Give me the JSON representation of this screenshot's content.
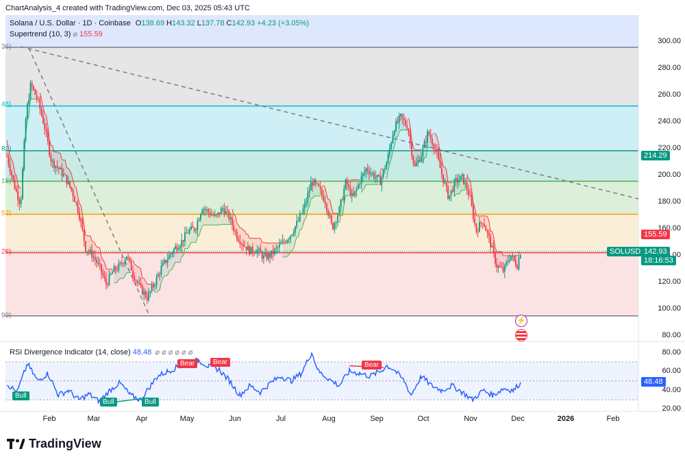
{
  "watermark": "ChartAnalysis_4 created with TradingView.com, Dec 03, 2025 05:43 UTC",
  "symbol": "Solana / U.S. Dollar · 1D · Coinbase",
  "ohlc": {
    "o_label": "O",
    "o": "138.69",
    "h_label": "H",
    "h": "143.32",
    "l_label": "L",
    "l": "137.78",
    "c_label": "C",
    "c": "142.93",
    "chg": "+4.23 (+3.05%)"
  },
  "supertrend": {
    "label": "Supertrend (10, 3)",
    "icon": "eye-off-icon",
    "value": "155.59"
  },
  "rsi_header": {
    "label": "RSI Divergence Indicator (14, close)",
    "value": "48.48",
    "icons": "⌀ ⌀ ⌀ ⌀ ⌀ ⌀"
  },
  "price_axis": [
    "300.00",
    "280.00",
    "260.00",
    "240.00",
    "220.00",
    "200.00",
    "180.00",
    "160.00",
    "140.00",
    "120.00",
    "100.00",
    "80.00"
  ],
  "rsi_axis": [
    "80.00",
    "60.00",
    "40.00",
    "20.00"
  ],
  "time_axis": [
    "Feb",
    "Mar",
    "Apr",
    "May",
    "Jun",
    "Jul",
    "Aug",
    "Sep",
    "Oct",
    "Nov",
    "Dec",
    "2026",
    "Feb"
  ],
  "fib_labels": [
    "36)",
    "48)",
    "82)",
    "18)",
    "53)",
    "28)",
    "99)"
  ],
  "tags": {
    "fib_level": "214.29",
    "supertrend": "155.59",
    "symbol": "SOLUSD",
    "price": "142.93",
    "countdown": "18:16:53",
    "rsi": "48.48"
  },
  "divergences": {
    "bull": "Bull",
    "bear": "Bear"
  },
  "brand": "TradingView",
  "colors": {
    "up": "#089981",
    "down": "#f23645",
    "rsi": "#2962ff",
    "fib_orange": "#ff9800",
    "fib_green": "#4caf50",
    "fib_teal": "#089981",
    "fib_cyan": "#00bcd4",
    "fib_red": "#f23645",
    "fib_gray": "#787b86"
  }
}
